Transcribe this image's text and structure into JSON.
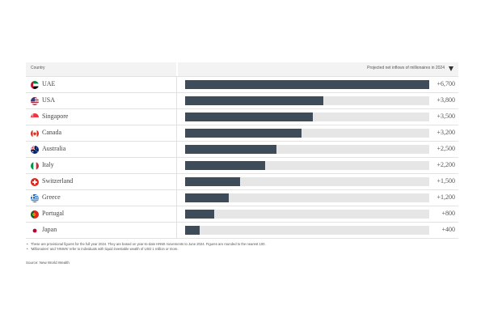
{
  "header": {
    "country_label": "Country",
    "metric_label": "Projected net inflows of millionaires in 2024"
  },
  "chart_data": {
    "type": "bar",
    "orientation": "horizontal",
    "categories": [
      "UAE",
      "USA",
      "Singapore",
      "Canada",
      "Australia",
      "Italy",
      "Switzerland",
      "Greece",
      "Portugal",
      "Japan"
    ],
    "values": [
      6700,
      3800,
      3500,
      3200,
      2500,
      2200,
      1500,
      1200,
      800,
      400
    ],
    "value_labels": [
      "+6,700",
      "+3,800",
      "+3,500",
      "+3,200",
      "+2,500",
      "+2,200",
      "+1,500",
      "+1,200",
      "+800",
      "+400"
    ],
    "xlim": [
      0,
      6700
    ],
    "bar_color": "#3e4c5a",
    "track_color": "#e6e6e6"
  },
  "notes": [
    "These are provisional figures for the full year 2024. They are based on year-to-date HNWI movements to June 2024. Figures are rounded to the nearest 100.",
    "'Millionaires' and 'HNWIs' refer to individuals with liquid investable wealth of USD 1 million or more."
  ],
  "source": "Source: New World Wealth"
}
